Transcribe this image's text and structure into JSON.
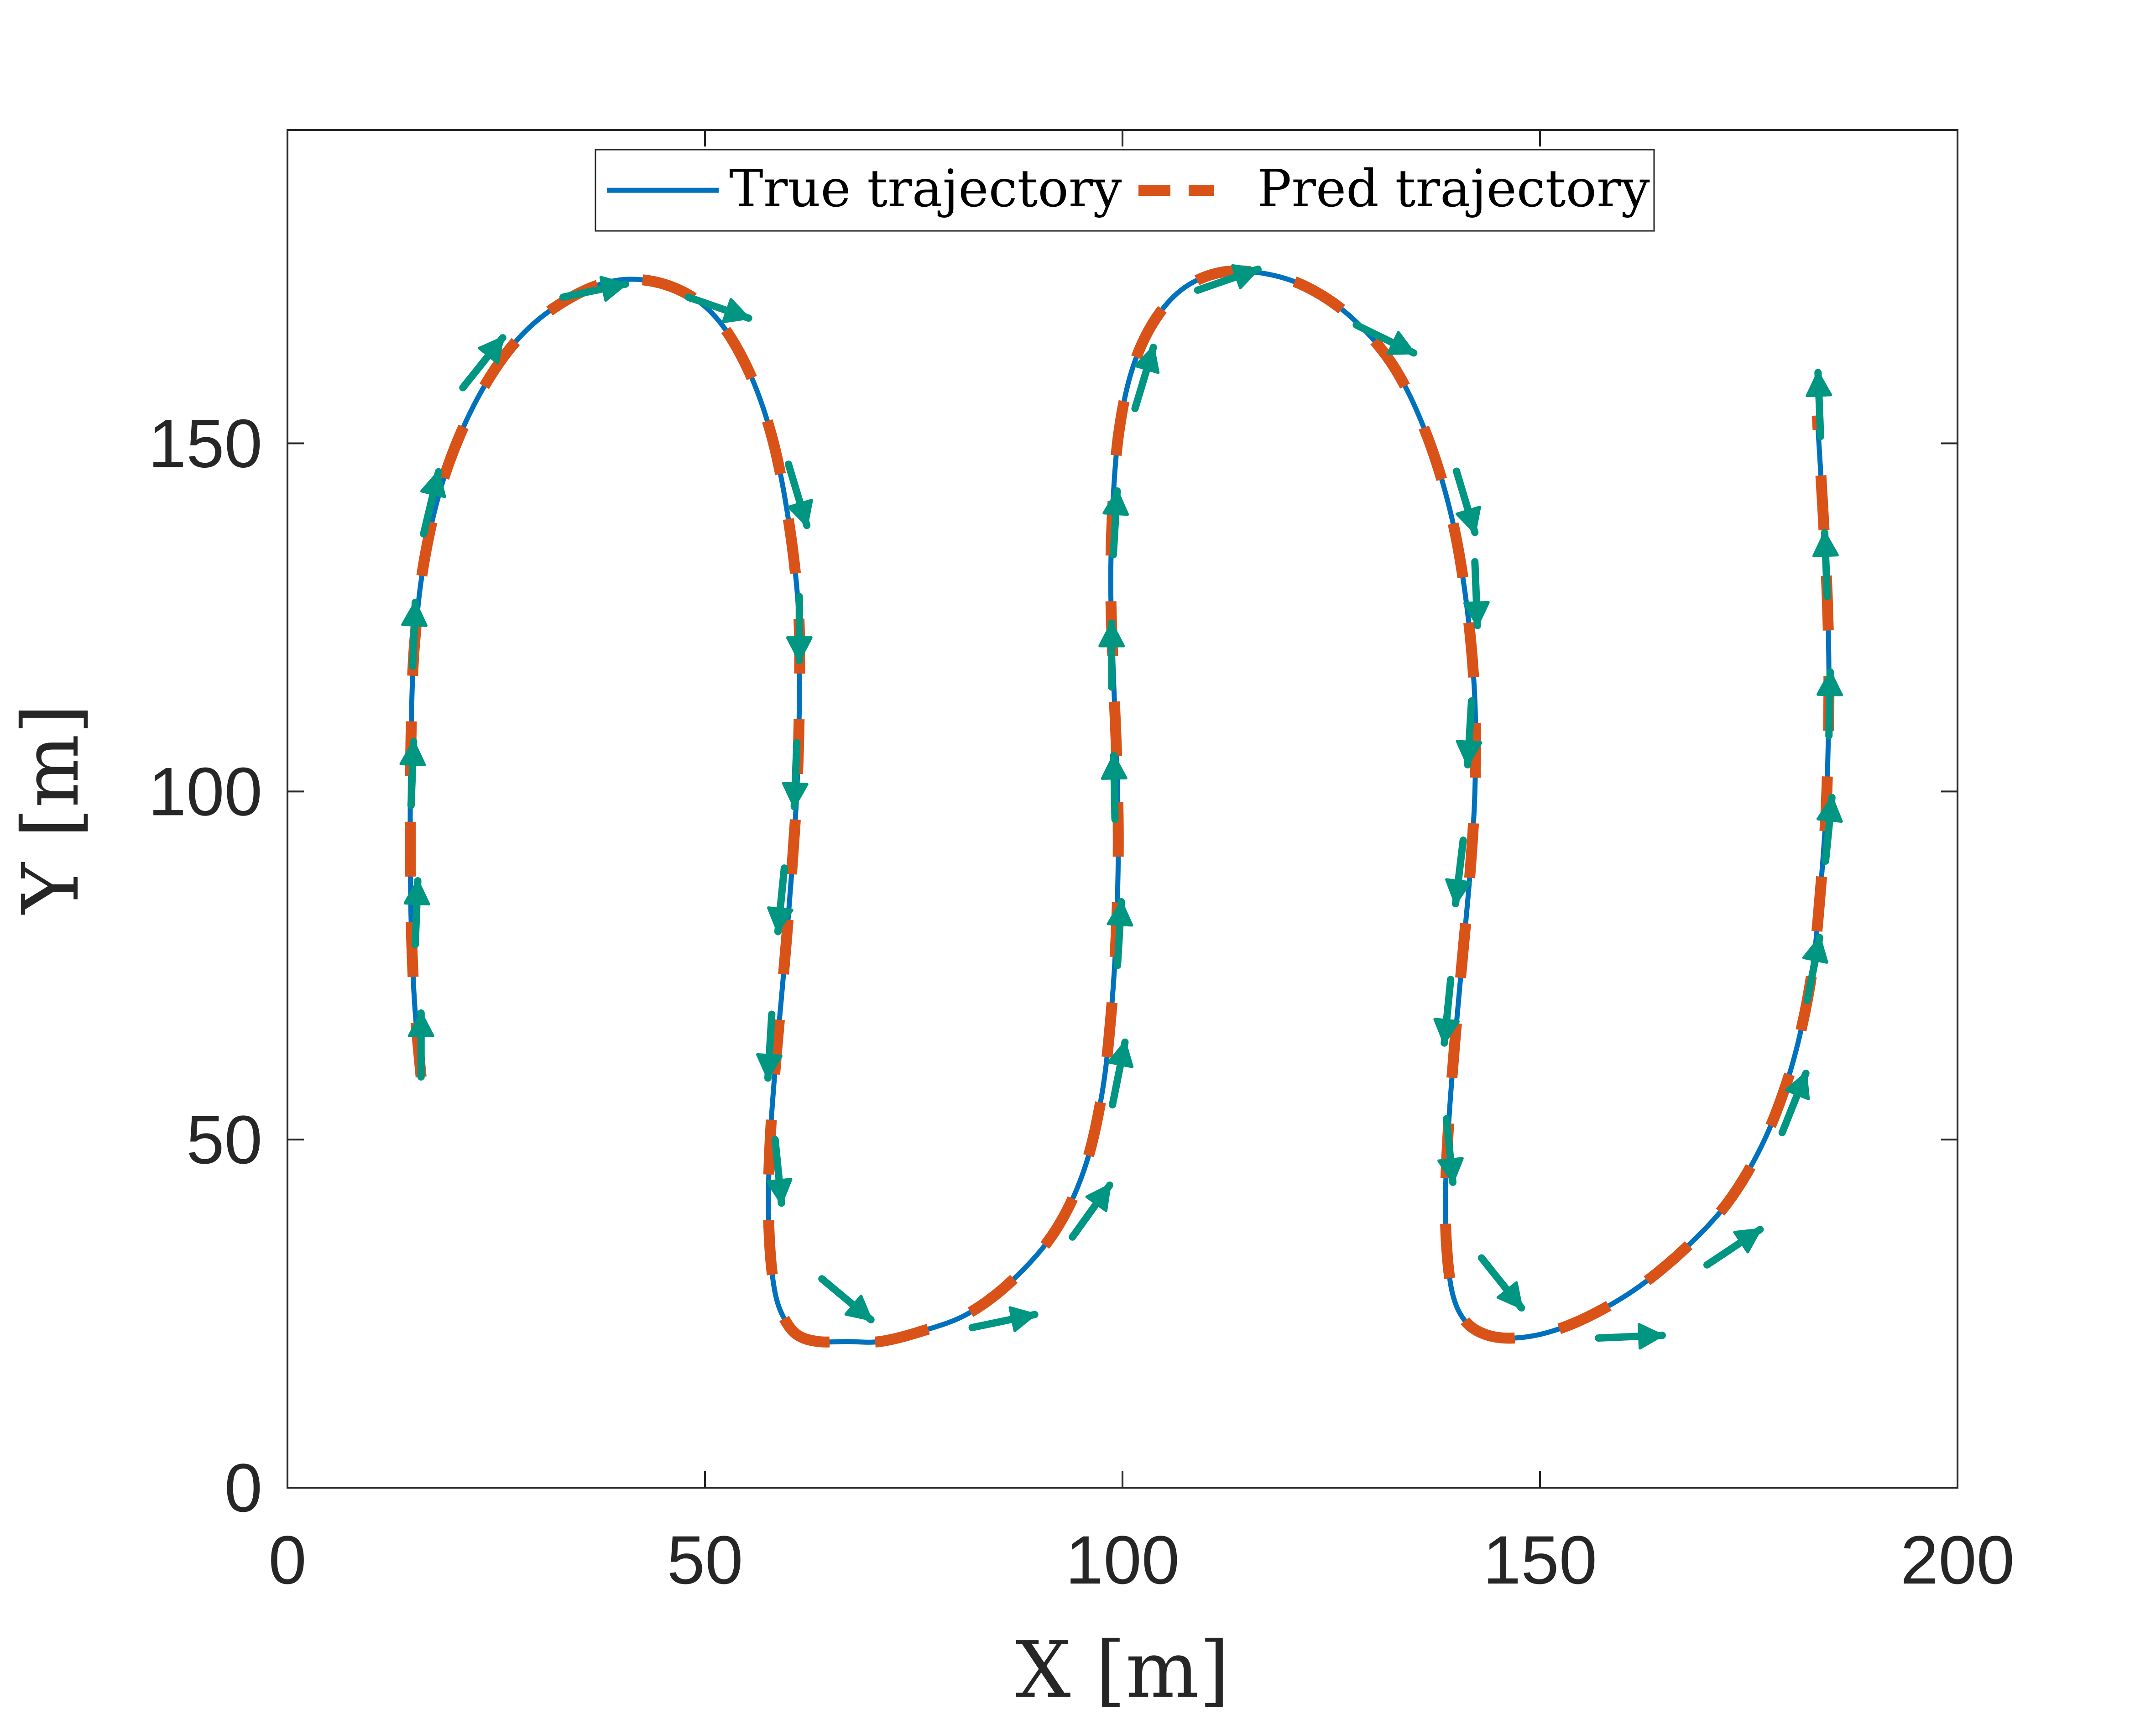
{
  "chart_data": {
    "type": "line",
    "title": "",
    "xlabel": "X [m]",
    "ylabel": "Y [m]",
    "xlim": [
      0,
      200
    ],
    "ylim": [
      0,
      195
    ],
    "xticks": [
      0,
      50,
      100,
      150,
      200
    ],
    "yticks": [
      0,
      50,
      100,
      150
    ],
    "grid": false,
    "legend_position": "top-center",
    "series": [
      {
        "name": "True trajectory",
        "style": "solid",
        "color": "#0072BD",
        "x": [
          16,
          15.2,
          14.8,
          14.7,
          14.8,
          15.2,
          16.5,
          19,
          23,
          28,
          34,
          40,
          46,
          51,
          55,
          58,
          60,
          61.2,
          61.3,
          61,
          60.3,
          59.5,
          58.6,
          57.9,
          57.6,
          57.8,
          58.4,
          59.4,
          61,
          63.5,
          67,
          71,
          76,
          81.5,
          87,
          92,
          95.5,
          97.6,
          98.7,
          99.3,
          99.5,
          99.3,
          98.9,
          98.6,
          98.8,
          99.5,
          101,
          103.5,
          107,
          111.5,
          116.5,
          122,
          127.5,
          132.5,
          136.5,
          139.5,
          141.3,
          142.2,
          142.2,
          141.6,
          140.7,
          139.8,
          139.1,
          138.7,
          138.8,
          139.5,
          141,
          143.5,
          147,
          151.5,
          156.5,
          162,
          167.5,
          172.5,
          176.5,
          179.5,
          181.5,
          182.8,
          183.6,
          184.2,
          184.5,
          184.6,
          184.4,
          183.9,
          183.2
        ],
        "y": [
          59,
          70,
          82,
          95,
          108,
          121,
          134,
          146,
          157,
          165.5,
          171,
          173.5,
          172.5,
          168.5,
          161,
          151,
          139,
          126,
          113,
          100,
          87,
          75,
          63,
          52,
          42,
          34,
          28,
          24.5,
          22,
          21,
          21,
          21,
          22.5,
          25,
          30,
          37,
          46,
          57,
          69,
          81,
          93,
          105,
          117,
          129,
          140,
          151,
          160,
          167,
          172,
          174.5,
          174.5,
          172.5,
          168,
          161,
          151,
          139,
          126,
          113,
          100,
          88,
          76,
          64,
          53,
          43,
          35,
          28,
          24,
          22,
          21.5,
          22.5,
          25,
          29,
          34.5,
          41,
          49,
          58,
          67,
          76,
          86,
          96,
          106,
          117,
          128,
          140,
          154
        ]
      },
      {
        "name": "Pred trajectory",
        "style": "dashed",
        "color": "#D95319",
        "x": [
          16,
          15.2,
          14.8,
          14.7,
          14.8,
          15.2,
          16.5,
          19,
          23,
          28,
          34,
          40,
          46,
          51,
          55,
          58,
          60,
          61.2,
          61.3,
          61,
          60.3,
          59.5,
          58.6,
          57.9,
          57.6,
          57.8,
          58.4,
          59.4,
          61,
          63.5,
          67,
          71,
          76,
          81.5,
          87,
          92,
          95.5,
          97.6,
          98.7,
          99.3,
          99.5,
          99.3,
          98.9,
          98.6,
          98.8,
          99.5,
          101,
          103.5,
          107,
          111.5,
          116.5,
          122,
          127.5,
          132.5,
          136.5,
          139.5,
          141.3,
          142.2,
          142.2,
          141.6,
          140.7,
          139.8,
          139.1,
          138.7,
          138.8,
          139.5,
          141,
          143.5,
          147,
          151.5,
          156.5,
          162,
          167.5,
          172.5,
          176.5,
          179.5,
          181.5,
          182.8,
          183.6,
          184.2,
          184.5,
          184.6,
          184.4,
          183.9,
          183.2
        ],
        "y": [
          59,
          70,
          82,
          95,
          108,
          121,
          134,
          146,
          157,
          165.5,
          171,
          173.5,
          172.5,
          168.5,
          161,
          151,
          139,
          126,
          113,
          100,
          87,
          75,
          63,
          52,
          42,
          34,
          28,
          24.5,
          22,
          21,
          21,
          21,
          22.5,
          25,
          30,
          37,
          46,
          57,
          69,
          81,
          93,
          105,
          117,
          129,
          140,
          151,
          160,
          167,
          172,
          174.5,
          174.5,
          172.5,
          168,
          161,
          151,
          139,
          126,
          113,
          100,
          88,
          76,
          64,
          53,
          43,
          35,
          28,
          24,
          22,
          21.5,
          22.5,
          25,
          29,
          34.5,
          41,
          49,
          58,
          67,
          76,
          86,
          96,
          106,
          117,
          128,
          140,
          154
        ]
      }
    ],
    "arrow_color": "#009682",
    "arrows": [
      {
        "x": 16,
        "y": 59,
        "u": 0,
        "v": 5
      },
      {
        "x": 15.3,
        "y": 78,
        "u": 0.2,
        "v": 6
      },
      {
        "x": 14.8,
        "y": 98,
        "u": 0.2,
        "v": 6
      },
      {
        "x": 15.0,
        "y": 118,
        "u": 0.2,
        "v": 6
      },
      {
        "x": 16.3,
        "y": 137,
        "u": 1.2,
        "v": 6
      },
      {
        "x": 21,
        "y": 158,
        "u": 3,
        "v": 4.5
      },
      {
        "x": 33,
        "y": 171,
        "u": 6,
        "v": 1.5
      },
      {
        "x": 48,
        "y": 171,
        "u": 6,
        "v": -2.5
      },
      {
        "x": 60,
        "y": 147,
        "u": 1.5,
        "v": -6
      },
      {
        "x": 61.3,
        "y": 128,
        "u": 0,
        "v": -6
      },
      {
        "x": 61,
        "y": 107,
        "u": -0.2,
        "v": -6
      },
      {
        "x": 59.5,
        "y": 89,
        "u": -0.5,
        "v": -6
      },
      {
        "x": 58,
        "y": 68,
        "u": -0.3,
        "v": -6
      },
      {
        "x": 58.4,
        "y": 50,
        "u": 0.5,
        "v": -6
      },
      {
        "x": 64,
        "y": 30,
        "u": 4,
        "v": -4
      },
      {
        "x": 82,
        "y": 23,
        "u": 6,
        "v": 1.5
      },
      {
        "x": 94,
        "y": 36,
        "u": 3,
        "v": 5
      },
      {
        "x": 98.8,
        "y": 55,
        "u": 1,
        "v": 6
      },
      {
        "x": 99.4,
        "y": 75,
        "u": 0.3,
        "v": 6
      },
      {
        "x": 99.1,
        "y": 96,
        "u": -0.1,
        "v": 6
      },
      {
        "x": 98.7,
        "y": 115,
        "u": 0,
        "v": 6
      },
      {
        "x": 98.9,
        "y": 134,
        "u": 0.3,
        "v": 6
      },
      {
        "x": 101.5,
        "y": 155,
        "u": 1.5,
        "v": 6
      },
      {
        "x": 109,
        "y": 172,
        "u": 6,
        "v": 2.5
      },
      {
        "x": 128,
        "y": 167,
        "u": 6,
        "v": -3.5
      },
      {
        "x": 140,
        "y": 146,
        "u": 1.5,
        "v": -6
      },
      {
        "x": 142.2,
        "y": 133,
        "u": 0.2,
        "v": -6
      },
      {
        "x": 141.8,
        "y": 113,
        "u": -0.3,
        "v": -6
      },
      {
        "x": 140.8,
        "y": 93,
        "u": -0.6,
        "v": -6
      },
      {
        "x": 139.3,
        "y": 73,
        "u": -0.5,
        "v": -6
      },
      {
        "x": 138.8,
        "y": 53,
        "u": 0.5,
        "v": -6
      },
      {
        "x": 143,
        "y": 33,
        "u": 3,
        "v": -4.5
      },
      {
        "x": 157,
        "y": 21.5,
        "u": 6,
        "v": 0.3
      },
      {
        "x": 170,
        "y": 32,
        "u": 5,
        "v": 4
      },
      {
        "x": 179,
        "y": 51,
        "u": 2,
        "v": 6
      },
      {
        "x": 182,
        "y": 70,
        "u": 1,
        "v": 6
      },
      {
        "x": 184.2,
        "y": 90,
        "u": 0.5,
        "v": 6
      },
      {
        "x": 184.6,
        "y": 108,
        "u": 0.1,
        "v": 6
      },
      {
        "x": 184.4,
        "y": 128,
        "u": -0.2,
        "v": 6
      },
      {
        "x": 183.6,
        "y": 151,
        "u": -0.2,
        "v": 6
      }
    ]
  }
}
